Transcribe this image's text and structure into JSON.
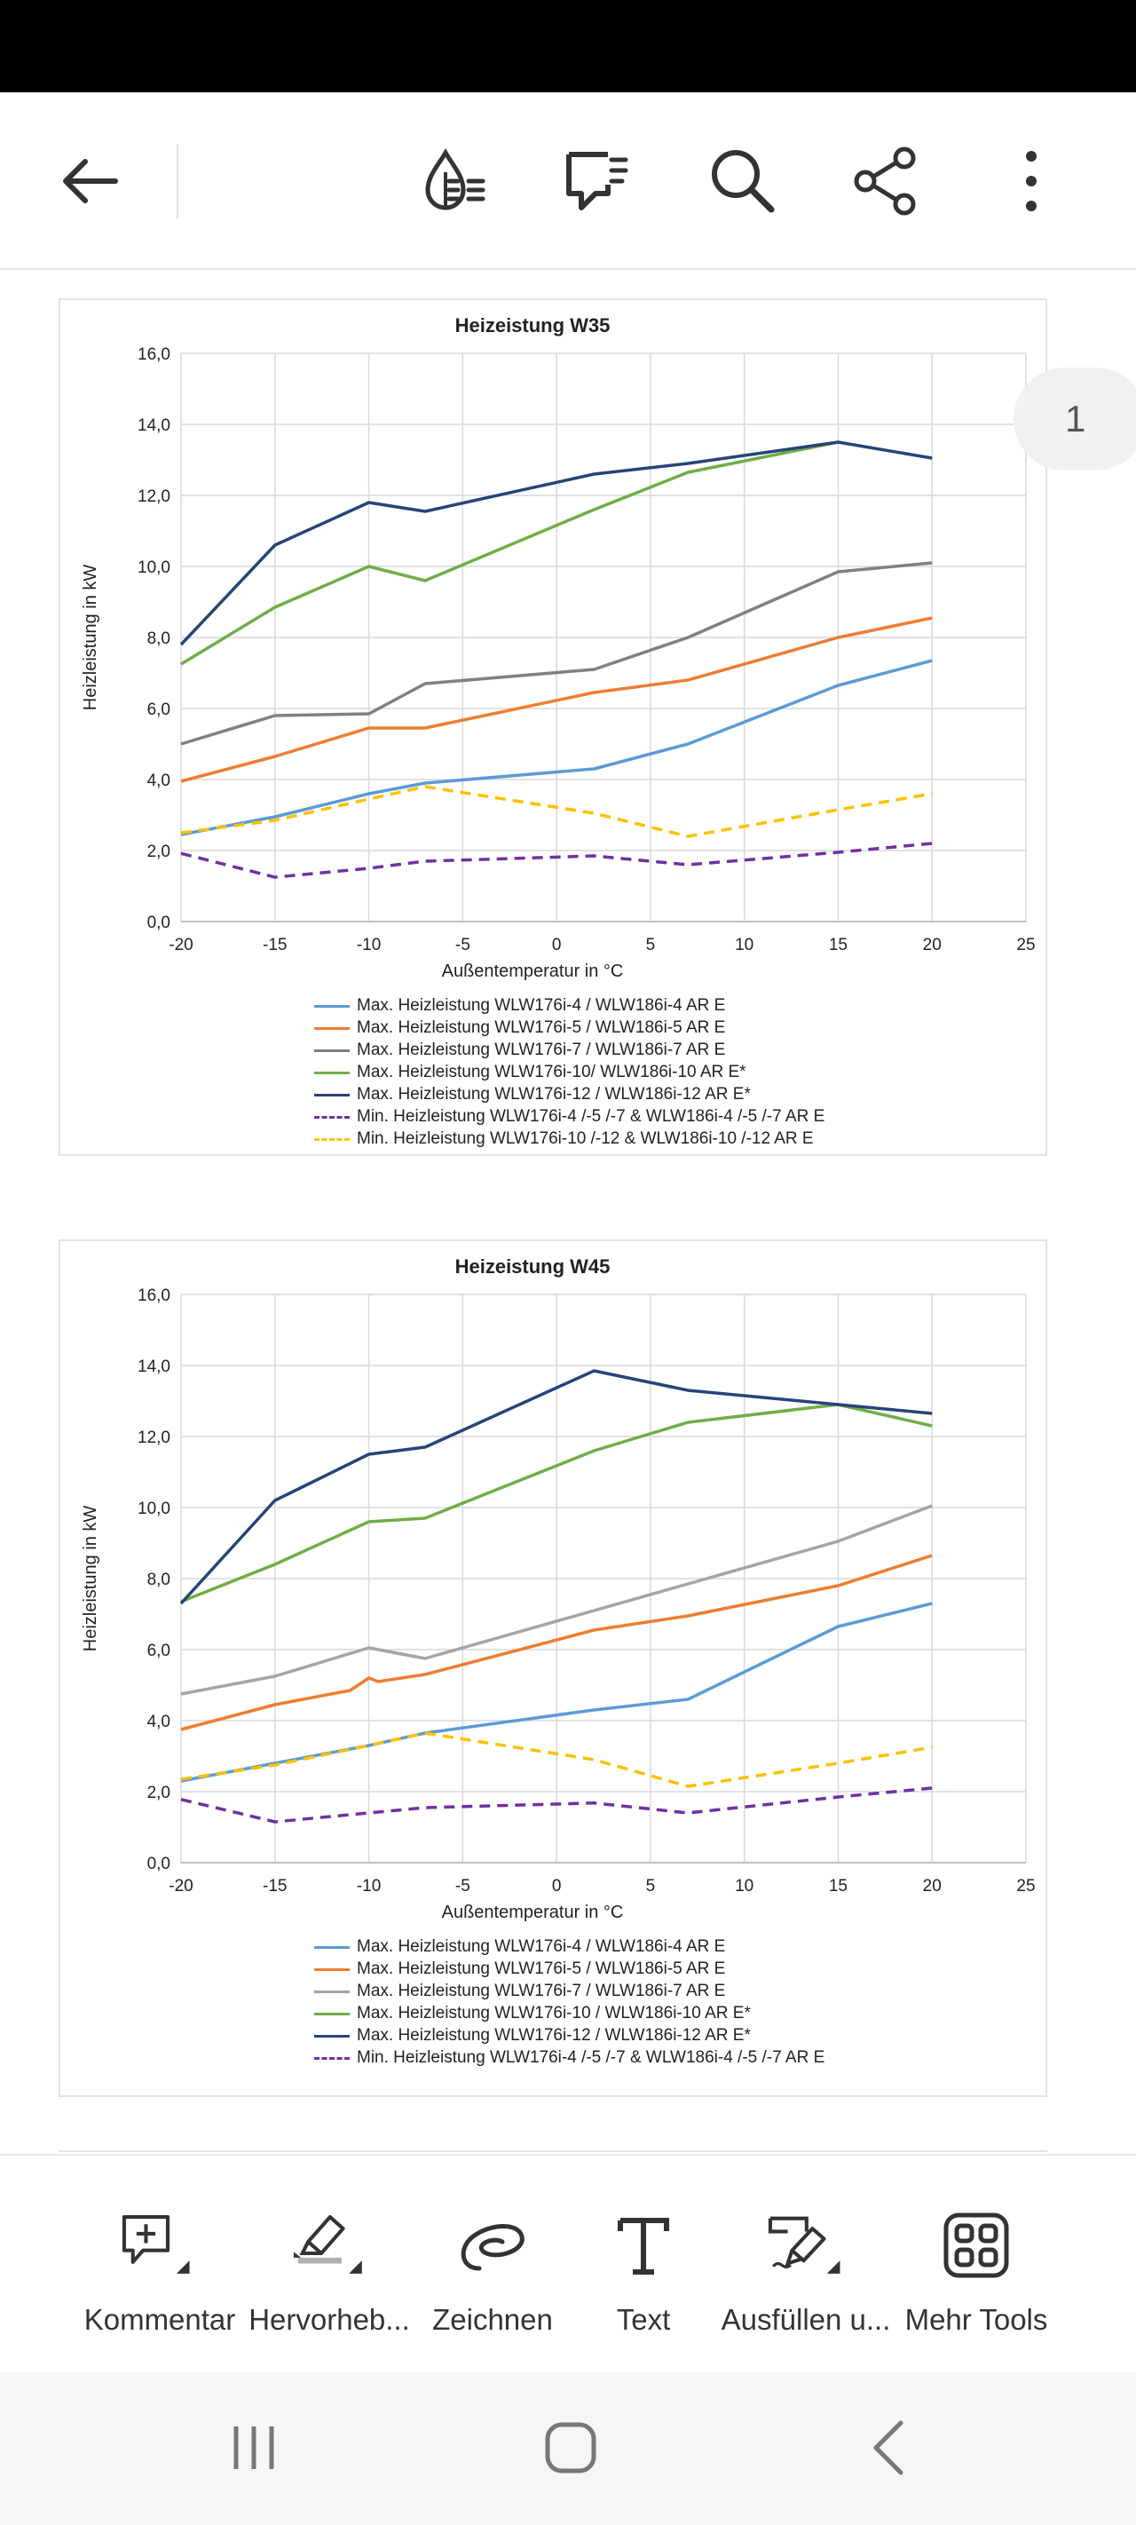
{
  "toolbar": {
    "back": "back-arrow-icon",
    "icons": [
      "reading-mode-icon",
      "comments-icon",
      "search-icon",
      "share-icon",
      "more-icon"
    ]
  },
  "page_indicator": "1",
  "colors": {
    "s1": "#5b9bd5",
    "s2": "#ed7d31",
    "s3": "#808080",
    "s3b": "#a5a5a5",
    "s4": "#70ad47",
    "s5": "#264478",
    "min1": "#7030a0",
    "min2": "#ffc000"
  },
  "chart_data": [
    {
      "type": "line",
      "title": "Heizeistung W35",
      "xlabel": "Außentemperatur in °C",
      "ylabel": "Heizleistung in kW",
      "xlim": [
        -20,
        25
      ],
      "ylim": [
        0,
        16
      ],
      "x_ticks": [
        "-20",
        "-15",
        "-10",
        "-5",
        "0",
        "5",
        "10",
        "15",
        "20",
        "25"
      ],
      "y_ticks": [
        "0,0",
        "2,0",
        "4,0",
        "6,0",
        "8,0",
        "10,0",
        "12,0",
        "14,0",
        "16,0"
      ],
      "grid": true,
      "legend_position": "bottom",
      "series": [
        {
          "name": "Max. Heizleistung WLW176i-4 / WLW186i-4 AR E",
          "color": "#5b9bd5",
          "dash": false,
          "points": [
            [
              -20,
              2.45
            ],
            [
              -15,
              2.95
            ],
            [
              -10,
              3.6
            ],
            [
              -7,
              3.9
            ],
            [
              2,
              4.3
            ],
            [
              7,
              5.0
            ],
            [
              15,
              6.65
            ],
            [
              20,
              7.35
            ]
          ]
        },
        {
          "name": "Max. Heizleistung WLW176i-5 / WLW186i-5 AR E",
          "color": "#ed7d31",
          "dash": false,
          "points": [
            [
              -20,
              3.95
            ],
            [
              -15,
              4.65
            ],
            [
              -10,
              5.45
            ],
            [
              -7,
              5.45
            ],
            [
              2,
              6.45
            ],
            [
              7,
              6.8
            ],
            [
              15,
              8.0
            ],
            [
              20,
              8.55
            ]
          ]
        },
        {
          "name": "Max. Heizleistung WLW176i-7 / WLW186i-7 AR E",
          "color": "#808080",
          "dash": false,
          "points": [
            [
              -20,
              5.0
            ],
            [
              -15,
              5.8
            ],
            [
              -10,
              5.85
            ],
            [
              -7,
              6.7
            ],
            [
              2,
              7.1
            ],
            [
              7,
              8.0
            ],
            [
              15,
              9.85
            ],
            [
              20,
              10.1
            ]
          ]
        },
        {
          "name": "Max. Heizleistung WLW176i-10/ WLW186i-10 AR E*",
          "color": "#70ad47",
          "dash": false,
          "points": [
            [
              -20,
              7.25
            ],
            [
              -15,
              8.85
            ],
            [
              -10,
              10.0
            ],
            [
              -7,
              9.6
            ],
            [
              2,
              11.6
            ],
            [
              7,
              12.65
            ],
            [
              15,
              13.5
            ]
          ]
        },
        {
          "name": "Max. Heizleistung WLW176i-12 / WLW186i-12 AR E*",
          "color": "#264478",
          "dash": false,
          "points": [
            [
              -20,
              7.8
            ],
            [
              -15,
              10.6
            ],
            [
              -10,
              11.8
            ],
            [
              -7,
              11.55
            ],
            [
              2,
              12.6
            ],
            [
              7,
              12.9
            ],
            [
              15,
              13.5
            ],
            [
              20,
              13.05
            ]
          ]
        },
        {
          "name": "Min. Heizleistung WLW176i-4 /-5 /-7 & WLW186i-4 /-5 /-7 AR E",
          "color": "#7030a0",
          "dash": true,
          "points": [
            [
              -20,
              1.92
            ],
            [
              -15,
              1.25
            ],
            [
              -10,
              1.5
            ],
            [
              -7,
              1.7
            ],
            [
              2,
              1.85
            ],
            [
              7,
              1.6
            ],
            [
              15,
              1.95
            ],
            [
              20,
              2.2
            ]
          ]
        },
        {
          "name": "Min. Heizleistung WLW176i-10 /-12 & WLW186i-10 /-12 AR E",
          "color": "#ffc000",
          "dash": true,
          "points": [
            [
              -20,
              2.5
            ],
            [
              -15,
              2.85
            ],
            [
              -10,
              3.45
            ],
            [
              -7,
              3.8
            ],
            [
              2,
              3.05
            ],
            [
              7,
              2.4
            ],
            [
              15,
              3.15
            ],
            [
              20,
              3.6
            ]
          ]
        }
      ]
    },
    {
      "type": "line",
      "title": "Heizeistung W45",
      "xlabel": "Außentemperatur in °C",
      "ylabel": "Heizleistung in kW",
      "xlim": [
        -20,
        25
      ],
      "ylim": [
        0,
        16
      ],
      "x_ticks": [
        "-20",
        "-15",
        "-10",
        "-5",
        "0",
        "5",
        "10",
        "15",
        "20",
        "25"
      ],
      "y_ticks": [
        "0,0",
        "2,0",
        "4,0",
        "6,0",
        "8,0",
        "10,0",
        "12,0",
        "14,0",
        "16,0"
      ],
      "grid": true,
      "legend_position": "bottom",
      "series": [
        {
          "name": "Max. Heizleistung WLW176i-4 / WLW186i-4 AR E",
          "color": "#5b9bd5",
          "dash": false,
          "points": [
            [
              -20,
              2.3
            ],
            [
              -15,
              2.8
            ],
            [
              -10,
              3.3
            ],
            [
              -7,
              3.65
            ],
            [
              2,
              4.3
            ],
            [
              7,
              4.6
            ],
            [
              15,
              6.65
            ],
            [
              20,
              7.3
            ]
          ]
        },
        {
          "name": "Max. Heizleistung WLW176i-5 / WLW186i-5 AR E",
          "color": "#ed7d31",
          "dash": false,
          "points": [
            [
              -20,
              3.75
            ],
            [
              -15,
              4.45
            ],
            [
              -11,
              4.85
            ],
            [
              -10,
              5.2
            ],
            [
              -9.5,
              5.1
            ],
            [
              -7,
              5.3
            ],
            [
              2,
              6.55
            ],
            [
              7,
              6.95
            ],
            [
              15,
              7.8
            ],
            [
              20,
              8.65
            ]
          ]
        },
        {
          "name": "Max. Heizleistung WLW176i-7 / WLW186i-7 AR E",
          "color": "#a5a5a5",
          "dash": false,
          "points": [
            [
              -20,
              4.75
            ],
            [
              -15,
              5.25
            ],
            [
              -10,
              6.05
            ],
            [
              -7,
              5.75
            ],
            [
              7,
              7.85
            ],
            [
              15,
              9.05
            ],
            [
              20,
              10.05
            ]
          ]
        },
        {
          "name": "Max. Heizleistung WLW176i-10 / WLW186i-10 AR E*",
          "color": "#70ad47",
          "dash": false,
          "points": [
            [
              -20,
              7.35
            ],
            [
              -15,
              8.4
            ],
            [
              -10,
              9.6
            ],
            [
              -7,
              9.7
            ],
            [
              2,
              11.6
            ],
            [
              7,
              12.4
            ],
            [
              15,
              12.9
            ],
            [
              20,
              12.3
            ]
          ]
        },
        {
          "name": "Max. Heizleistung WLW176i-12 / WLW186i-12 AR E*",
          "color": "#264478",
          "dash": false,
          "points": [
            [
              -20,
              7.3
            ],
            [
              -15,
              10.2
            ],
            [
              -10,
              11.5
            ],
            [
              -7,
              11.7
            ],
            [
              2,
              13.85
            ],
            [
              7,
              13.3
            ],
            [
              15,
              12.9
            ],
            [
              20,
              12.65
            ]
          ]
        },
        {
          "name": "Min. Heizleistung WLW176i-4 /-5 /-7 & WLW186i-4 /-5 /-7 AR E",
          "color": "#7030a0",
          "dash": true,
          "points": [
            [
              -20,
              1.78
            ],
            [
              -15,
              1.15
            ],
            [
              -10,
              1.4
            ],
            [
              -7,
              1.55
            ],
            [
              2,
              1.68
            ],
            [
              7,
              1.4
            ],
            [
              15,
              1.85
            ],
            [
              20,
              2.1
            ]
          ]
        },
        {
          "name": "",
          "color": "#ffc000",
          "dash": true,
          "in_legend": false,
          "points": [
            [
              -20,
              2.35
            ],
            [
              -15,
              2.75
            ],
            [
              -10,
              3.3
            ],
            [
              -7,
              3.65
            ],
            [
              2,
              2.9
            ],
            [
              7,
              2.15
            ],
            [
              15,
              2.8
            ],
            [
              20,
              3.25
            ]
          ]
        }
      ]
    }
  ],
  "bottom_tools": [
    {
      "label": "Kommentar",
      "icon": "comment-add-icon"
    },
    {
      "label": "Hervorheb...",
      "icon": "highlighter-icon"
    },
    {
      "label": "Zeichnen",
      "icon": "draw-icon"
    },
    {
      "label": "Text",
      "icon": "text-icon"
    },
    {
      "label": "Ausfüllen u...",
      "icon": "fill-sign-icon"
    },
    {
      "label": "Mehr Tools",
      "icon": "more-tools-icon"
    }
  ],
  "nav": [
    "recent-apps-icon",
    "home-icon",
    "back-icon"
  ]
}
